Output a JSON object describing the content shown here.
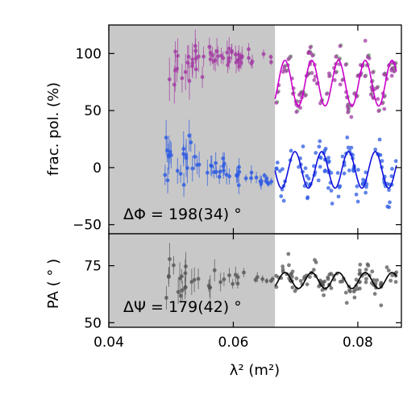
{
  "chart_data": [
    {
      "type": "scatter",
      "panel": "top",
      "ylabel": "frac. pol. (%)",
      "xlim": [
        0.04,
        0.087
      ],
      "ylim": [
        -58,
        125
      ],
      "yticks": [
        -50,
        0,
        50,
        100
      ],
      "shaded_region_x": [
        0.04,
        0.0667
      ],
      "annotation": "ΔΦ = 198(34) °",
      "series": [
        {
          "color": "#a23aa3",
          "fit_color": "#cc00cc",
          "fit": {
            "x_start": 0.0667,
            "baseline": 74,
            "amplitude": 20,
            "period": 0.0043,
            "phase_x": 0.0683
          }
        },
        {
          "color": "#2c5ae3",
          "fit_color": "#1010dd",
          "fit": {
            "x_start": 0.0667,
            "baseline": -2,
            "amplitude": 16,
            "period": 0.0043,
            "phase_x": 0.0699
          }
        }
      ]
    },
    {
      "type": "scatter",
      "panel": "bottom",
      "xlabel": "λ² (m²)",
      "ylabel": "PA ( ° )",
      "xlim": [
        0.04,
        0.087
      ],
      "ylim": [
        48,
        89
      ],
      "yticks": [
        50,
        75
      ],
      "xticks": [
        0.04,
        0.06,
        0.08
      ],
      "xtick_labels": [
        "0.04",
        "0.06",
        "0.08"
      ],
      "shaded_region_x": [
        0.04,
        0.0667
      ],
      "annotation": "ΔΨ = 179(42) °",
      "series": [
        {
          "color": "#555555",
          "fit_color": "#000000",
          "fit": {
            "x_start": 0.0667,
            "baseline": 68.5,
            "amplitude": 3.5,
            "period": 0.0043,
            "phase_x": 0.0683
          }
        }
      ]
    }
  ],
  "colors": {
    "shade": "#c8c8c8",
    "green_points": "#6fa86f"
  }
}
